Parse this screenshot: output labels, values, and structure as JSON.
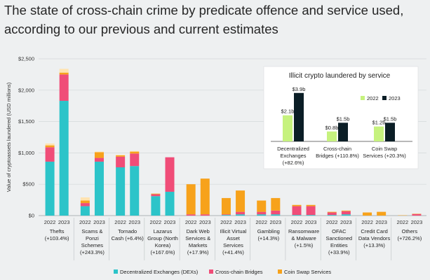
{
  "headline": {
    "line1": "The state of cross-chain crime by predicate offence and service used,",
    "line2": "according to our previous and current estimates"
  },
  "chart_data": {
    "type": "bar",
    "stacked": true,
    "ylabel": "Value of cryptoassets laundered (USD millions)",
    "ylim": [
      0,
      2500
    ],
    "yticks": [
      0,
      500,
      1000,
      1500,
      2000,
      2500
    ],
    "ytick_labels": [
      "$0",
      "$500",
      "$1,000",
      "$1,500",
      "$2,000",
      "$2,500"
    ],
    "grid": true,
    "legend_position": "bottom",
    "colors": {
      "dex": "#2cc4c9",
      "bridge": "#f04d78",
      "swap": "#f7a21b",
      "prev_estimate": "#ffe3b0"
    },
    "legend": [
      "Decentralized Exchanges (DEXs)",
      "Cross-chain Bridges",
      "Coin Swap Services"
    ],
    "groups": [
      {
        "label": [
          "Thefts",
          "(+103.4%)"
        ],
        "bars": [
          {
            "year": "2022",
            "dex": 860,
            "bridge": 230,
            "swap": 30,
            "prev": 30
          },
          {
            "year": "2023",
            "dex": 1830,
            "bridge": 420,
            "swap": 30,
            "prev": 60
          }
        ]
      },
      {
        "label": [
          "Scams &",
          "Ponzi",
          "Schemes",
          "(+243.3%)"
        ],
        "bars": [
          {
            "year": "2022",
            "dex": 150,
            "bridge": 50,
            "swap": 40,
            "prev": 50
          },
          {
            "year": "2023",
            "dex": 860,
            "bridge": 60,
            "swap": 90,
            "prev": 10
          }
        ]
      },
      {
        "label": [
          "Tornado",
          "Cash (+6.4%)"
        ],
        "bars": [
          {
            "year": "2022",
            "dex": 770,
            "bridge": 170,
            "swap": 20,
            "prev": 10
          },
          {
            "year": "2023",
            "dex": 790,
            "bridge": 200,
            "swap": 30,
            "prev": 10
          }
        ]
      },
      {
        "label": [
          "Lazarus",
          "Group (North",
          "Korea)",
          "(+167.6%)"
        ],
        "bars": [
          {
            "year": "2022",
            "dex": 310,
            "bridge": 30,
            "swap": 10,
            "prev": 0
          },
          {
            "year": "2023",
            "dex": 380,
            "bridge": 550,
            "swap": 0,
            "prev": 0
          }
        ]
      },
      {
        "label": [
          "Dark Web",
          "Services &",
          "Markets",
          "(+17.9%)"
        ],
        "bars": [
          {
            "year": "2022",
            "dex": 0,
            "bridge": 20,
            "swap": 480,
            "prev": 0
          },
          {
            "year": "2023",
            "dex": 0,
            "bridge": 20,
            "swap": 570,
            "prev": 0
          }
        ]
      },
      {
        "label": [
          "Illicit Virtual",
          "Asset",
          "Services",
          "(+41.4%)"
        ],
        "bars": [
          {
            "year": "2022",
            "dex": 10,
            "bridge": 10,
            "swap": 260,
            "prev": 0
          },
          {
            "year": "2023",
            "dex": 20,
            "bridge": 40,
            "swap": 340,
            "prev": 0
          }
        ]
      },
      {
        "label": [
          "Gambling",
          "(+14.3%)"
        ],
        "bars": [
          {
            "year": "2022",
            "dex": 20,
            "bridge": 40,
            "swap": 180,
            "prev": 0
          },
          {
            "year": "2023",
            "dex": 20,
            "bridge": 60,
            "swap": 200,
            "prev": 0
          }
        ]
      },
      {
        "label": [
          "Ransomware",
          "& Malware",
          "(+1.5%)"
        ],
        "bars": [
          {
            "year": "2022",
            "dex": 10,
            "bridge": 140,
            "swap": 20,
            "prev": 0
          },
          {
            "year": "2023",
            "dex": 10,
            "bridge": 140,
            "swap": 20,
            "prev": 0
          }
        ]
      },
      {
        "label": [
          "OFAC",
          "Sanctioned",
          "Entities",
          "(+33.9%)"
        ],
        "bars": [
          {
            "year": "2022",
            "dex": 10,
            "bridge": 40,
            "swap": 10,
            "prev": 0
          },
          {
            "year": "2023",
            "dex": 20,
            "bridge": 50,
            "swap": 10,
            "prev": 0
          }
        ]
      },
      {
        "label": [
          "Credit Card",
          "Data Vendors",
          "(+13.3%)"
        ],
        "bars": [
          {
            "year": "2022",
            "dex": 0,
            "bridge": 0,
            "swap": 50,
            "prev": 0
          },
          {
            "year": "2023",
            "dex": 0,
            "bridge": 0,
            "swap": 60,
            "prev": 0
          }
        ]
      },
      {
        "label": [
          "Others",
          "(+726.2%)"
        ],
        "bars": [
          {
            "year": "2022",
            "dex": 0,
            "bridge": 0,
            "swap": 5,
            "prev": 0
          },
          {
            "year": "2023",
            "dex": 0,
            "bridge": 25,
            "swap": 5,
            "prev": 0
          }
        ]
      }
    ],
    "inset": {
      "title": "Illicit crypto laundered by service",
      "series_colors": {
        "2022": "#c6f27e",
        "2023": "#0b1e26"
      },
      "legend": [
        "2022",
        "2023"
      ],
      "ylim": [
        0,
        4
      ],
      "categories": [
        {
          "label": [
            "Decentralized",
            "Exchanges",
            "(+82.6%)"
          ],
          "v2022": 2.1,
          "v2023": 3.9,
          "l2022": "$2.1b",
          "l2023": "$3.9b"
        },
        {
          "label": [
            "Cross-chain",
            "Bridges (+110.8%)"
          ],
          "v2022": 0.8,
          "v2023": 1.5,
          "l2022": "$0.8b",
          "l2023": "$1.5b"
        },
        {
          "label": [
            "Coin Swap",
            "Services (+20.3%)"
          ],
          "v2022": 1.2,
          "v2023": 1.5,
          "l2022": "$1.2b",
          "l2023": "$1.5b"
        }
      ]
    }
  }
}
